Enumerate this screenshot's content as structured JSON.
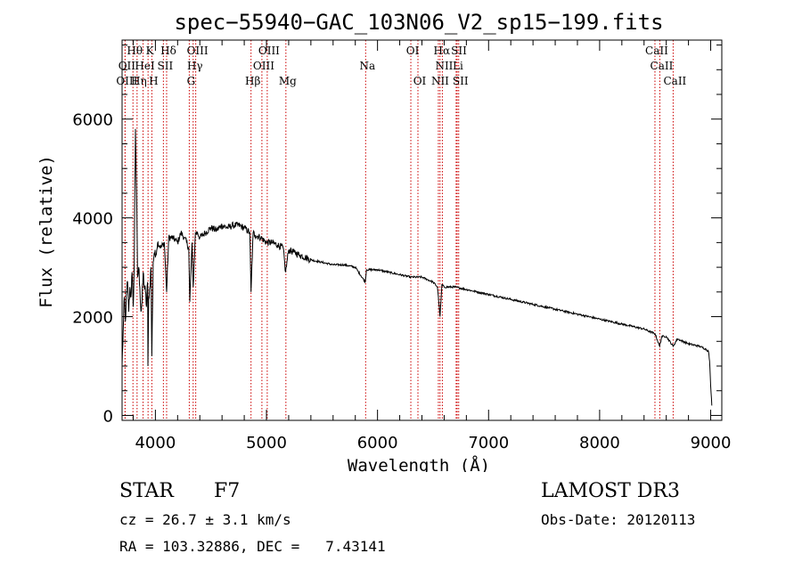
{
  "chart_data": {
    "type": "line",
    "title": "spec−55940−GAC_103N06_V2_sp15−199.fits",
    "xlabel": "Wavelength (Å)",
    "ylabel": "Flux (relative)",
    "xlim": [
      3700,
      9100
    ],
    "ylim": [
      -100,
      7600
    ],
    "x_ticks": [
      4000,
      5000,
      6000,
      7000,
      8000,
      9000
    ],
    "y_ticks": [
      0,
      2000,
      4000,
      6000
    ],
    "series": [
      {
        "name": "flux",
        "x": [
          3700,
          3710,
          3720,
          3730,
          3740,
          3750,
          3760,
          3770,
          3780,
          3790,
          3800,
          3810,
          3820,
          3830,
          3840,
          3850,
          3860,
          3870,
          3880,
          3890,
          3900,
          3910,
          3920,
          3930,
          3933,
          3940,
          3950,
          3960,
          3968,
          3980,
          3990,
          4000,
          4020,
          4050,
          4080,
          4101,
          4120,
          4150,
          4180,
          4200,
          4230,
          4260,
          4300,
          4310,
          4330,
          4340,
          4360,
          4380,
          4400,
          4450,
          4500,
          4550,
          4600,
          4650,
          4700,
          4750,
          4800,
          4850,
          4861,
          4880,
          4900,
          4950,
          5000,
          5050,
          5100,
          5150,
          5172,
          5200,
          5250,
          5300,
          5400,
          5500,
          5600,
          5700,
          5800,
          5890,
          5900,
          6000,
          6100,
          6200,
          6300,
          6400,
          6500,
          6540,
          6563,
          6580,
          6600,
          6700,
          6800,
          7000,
          7200,
          7400,
          7600,
          7800,
          8000,
          8200,
          8400,
          8500,
          8540,
          8560,
          8600,
          8662,
          8700,
          8800,
          8900,
          8950,
          8980,
          8990,
          9000,
          9010
        ],
        "y": [
          1000,
          1700,
          2400,
          1900,
          2500,
          2700,
          2100,
          2600,
          2400,
          2900,
          2200,
          3100,
          5800,
          4600,
          2800,
          3000,
          2600,
          2100,
          2300,
          2900,
          2600,
          2500,
          2200,
          2700,
          1000,
          2400,
          2600,
          3000,
          1200,
          3100,
          3300,
          3200,
          3500,
          3400,
          3500,
          2500,
          3600,
          3600,
          3550,
          3500,
          3700,
          3600,
          3400,
          2300,
          3500,
          2600,
          3700,
          3700,
          3600,
          3700,
          3800,
          3750,
          3850,
          3800,
          3850,
          3850,
          3800,
          3700,
          2500,
          3700,
          3650,
          3600,
          3500,
          3500,
          3450,
          3400,
          2900,
          3350,
          3300,
          3250,
          3150,
          3100,
          3050,
          3050,
          3000,
          2700,
          2950,
          2950,
          2900,
          2850,
          2800,
          2800,
          2700,
          2600,
          2000,
          2650,
          2600,
          2600,
          2550,
          2450,
          2350,
          2250,
          2150,
          2050,
          1950,
          1850,
          1750,
          1650,
          1400,
          1600,
          1600,
          1400,
          1550,
          1450,
          1400,
          1350,
          1300,
          1100,
          600,
          200
        ]
      }
    ],
    "spectral_lines": [
      {
        "label": "Hθ",
        "x": 3798,
        "row": 1
      },
      {
        "label": "Hδ",
        "x": 4101,
        "row": 1
      },
      {
        "label": "OIII",
        "x": 4363,
        "row": 1
      },
      {
        "label": "OIII",
        "x": 5007,
        "row": 1
      },
      {
        "label": "OI",
        "x": 6300,
        "row": 1
      },
      {
        "label": "Hα",
        "x": 6563,
        "row": 1
      },
      {
        "label": "SII",
        "x": 6717,
        "row": 1
      },
      {
        "label": "CaII",
        "x": 8498,
        "row": 1
      },
      {
        "label": "OII",
        "x": 3727,
        "row": 2
      },
      {
        "label": "K",
        "x": 3934,
        "row": 1
      },
      {
        "label": "HeI",
        "x": 3889,
        "row": 2
      },
      {
        "label": "SII",
        "x": 4072,
        "row": 2
      },
      {
        "label": "Hγ",
        "x": 4340,
        "row": 2
      },
      {
        "label": "OIII",
        "x": 4959,
        "row": 2
      },
      {
        "label": "Na",
        "x": 5893,
        "row": 2
      },
      {
        "label": "NII",
        "x": 6584,
        "row": 2
      },
      {
        "label": "Li",
        "x": 6708,
        "row": 2
      },
      {
        "label": "CaII",
        "x": 8542,
        "row": 2
      },
      {
        "label": "OIII",
        "x": 3727,
        "row": 3
      },
      {
        "label": "Hη",
        "x": 3835,
        "row": 3
      },
      {
        "label": "H",
        "x": 3968,
        "row": 3
      },
      {
        "label": "G",
        "x": 4305,
        "row": 3
      },
      {
        "label": "Hβ",
        "x": 4861,
        "row": 3
      },
      {
        "label": "Mg",
        "x": 5175,
        "row": 3
      },
      {
        "label": "OI",
        "x": 6364,
        "row": 3
      },
      {
        "label": "NII",
        "x": 6548,
        "row": 3
      },
      {
        "label": "SII",
        "x": 6731,
        "row": 3
      },
      {
        "label": "CaII",
        "x": 8662,
        "row": 3
      }
    ]
  },
  "info": {
    "object_type": "STAR",
    "subclass": "F7",
    "survey": "LAMOST DR3",
    "redshift": "cz = 26.7 ± 3.1 km/s",
    "obs_date": "Obs-Date: 20120113",
    "coords": "RA = 103.32886, DEC =   7.43141"
  },
  "colors": {
    "spectrum": "#000000",
    "line_markers": "#cc0000",
    "axes": "#000000"
  }
}
